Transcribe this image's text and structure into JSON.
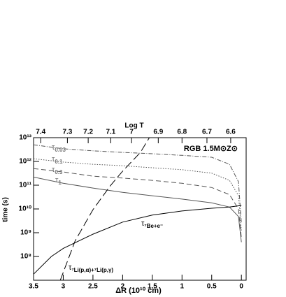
{
  "chart_data": {
    "type": "line",
    "title": "RGB 1.5M⊙Z⊙",
    "x_label": "ΔR (10¹⁰ cm)",
    "y_label": "time (s)",
    "log_y": true,
    "xlim": [
      3.5,
      -0.08
    ],
    "ylim": [
      10000000.0,
      10000000000000.0
    ],
    "xticks": [
      3.5,
      3,
      2.5,
      2,
      1.5,
      1,
      0.5,
      0
    ],
    "yticks": [
      {
        "value": 100000000.0,
        "label": "10⁸"
      },
      {
        "value": 1000000000.0,
        "label": "10⁹"
      },
      {
        "value": 10000000000.0,
        "label": "10¹⁰"
      },
      {
        "value": 100000000000.0,
        "label": "10¹¹"
      },
      {
        "value": 1000000000000.0,
        "label": "10¹²"
      },
      {
        "value": 10000000000000.0,
        "label": "10¹³"
      }
    ],
    "top_axis": {
      "label": "Log T",
      "ticks": [
        7.4,
        7.3,
        7.2,
        7.1,
        7,
        6.9,
        6.8,
        6.7,
        6.6
      ],
      "tick_positions": [
        3.38,
        2.93,
        2.58,
        2.2,
        1.85,
        1.4,
        1.0,
        0.58,
        0.18
      ]
    },
    "series": [
      {
        "label": "τ",
        "subscript": "0.03",
        "color": "#555",
        "label_color": "#777",
        "dash": "dashdot",
        "x": [
          3.5,
          3,
          2.5,
          2,
          1.5,
          1,
          0.5,
          0.2,
          0.05,
          0
        ],
        "values": [
          5000000000000.0,
          3400000000000.0,
          2800000000000.0,
          2400000000000.0,
          2100000000000.0,
          1800000000000.0,
          1500000000000.0,
          760000000000.0,
          140000000000.0,
          2500000000.0
        ]
      },
      {
        "label": "τ",
        "subscript": "0.1",
        "color": "#555",
        "label_color": "#777",
        "dash": "dotted",
        "x": [
          3.5,
          3,
          2.5,
          2,
          1.5,
          1,
          0.5,
          0.2,
          0.05,
          0
        ],
        "values": [
          1300000000000.0,
          940000000000.0,
          760000000000.0,
          660000000000.0,
          540000000000.0,
          450000000000.0,
          320000000000.0,
          160000000000.0,
          36000000000.0,
          1200000000.0
        ]
      },
      {
        "label": "τ",
        "subscript": "0.3",
        "color": "#555",
        "label_color": "#777",
        "dash": "dashed",
        "x": [
          3.5,
          3,
          2.5,
          2,
          1.5,
          1,
          0.5,
          0.2,
          0.05,
          0
        ],
        "values": [
          500000000000.0,
          360000000000.0,
          240000000000.0,
          200000000000.0,
          160000000000.0,
          120000000000.0,
          80000000000.0,
          40000000000.0,
          10000000000.0,
          600000000.0
        ]
      },
      {
        "label": "τ",
        "subscript": "1",
        "color": "#555",
        "label_color": "#777",
        "dash": "solid",
        "x": [
          3.5,
          3,
          2.5,
          2,
          1.5,
          1,
          0.5,
          0.2,
          0.05,
          0
        ],
        "values": [
          220000000000.0,
          120000000000.0,
          76000000000.0,
          50000000000.0,
          36000000000.0,
          26000000000.0,
          18000000000.0,
          12000000000.0,
          4800000000.0,
          400000000.0
        ]
      },
      {
        "label": "τ",
        "subscript": "⁷Be+e⁻",
        "color": "#000",
        "label_color": "#000",
        "dash": "solid",
        "x": [
          3.5,
          3.2,
          3,
          2.5,
          2,
          1.5,
          1,
          0.5,
          0.2,
          0
        ],
        "values": [
          18000000.0,
          100000000.0,
          220000000.0,
          870000000.0,
          2800000000.0,
          5500000000.0,
          8200000000.0,
          10700000000.0,
          12000000000.0,
          14000000000.0
        ]
      },
      {
        "label": "τ",
        "subscript": "⁷Li(p,α)+⁷Li(p,γ)",
        "color": "#000",
        "label_color": "#000",
        "dash": "longdash",
        "x": [
          3.05,
          2.8,
          2.5,
          2.2,
          2,
          1.7,
          1.55
        ],
        "values": [
          10000000.0,
          450000000.0,
          9300000000.0,
          100000000000.0,
          390000000000.0,
          2400000000000.0,
          10000000000000.0
        ]
      }
    ]
  }
}
